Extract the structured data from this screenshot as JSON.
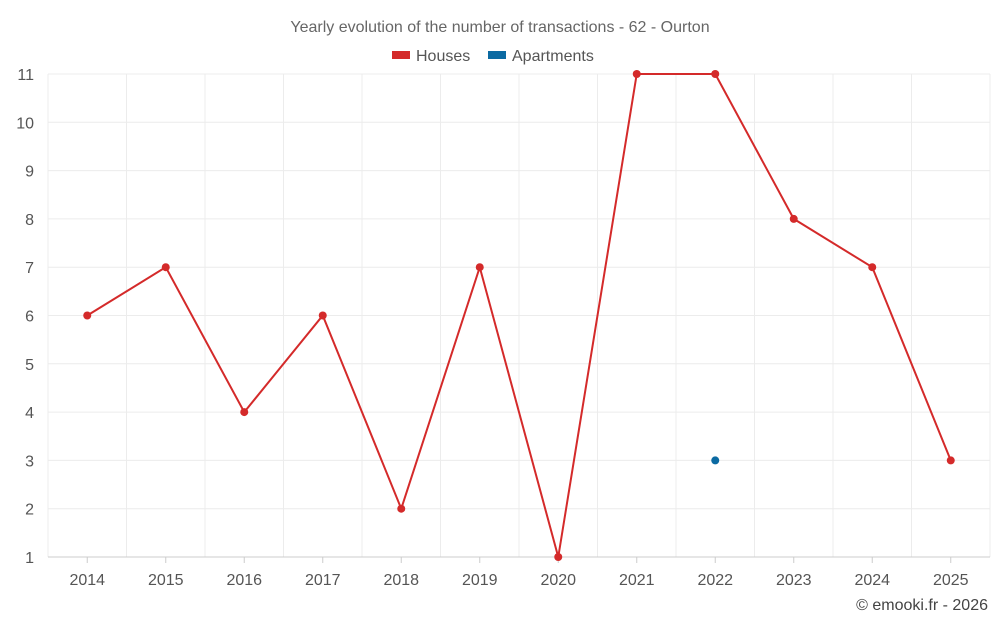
{
  "chart_data": {
    "type": "line",
    "title": "Yearly evolution of the number of transactions - 62 - Ourton",
    "categories": [
      "2014",
      "2015",
      "2016",
      "2017",
      "2018",
      "2019",
      "2020",
      "2021",
      "2022",
      "2023",
      "2024",
      "2025"
    ],
    "series": [
      {
        "name": "Houses",
        "color": "#d42a2a",
        "values": [
          6,
          7,
          4,
          6,
          2,
          7,
          1,
          11,
          11,
          8,
          7,
          3
        ]
      },
      {
        "name": "Apartments",
        "color": "#0b6aa2",
        "values": [
          null,
          null,
          null,
          null,
          null,
          null,
          null,
          null,
          3,
          null,
          null,
          null
        ]
      }
    ],
    "y_ticks": [
      1,
      2,
      3,
      4,
      5,
      6,
      7,
      8,
      9,
      10,
      11
    ],
    "ylim": [
      1,
      11
    ],
    "grid": true,
    "legend_position": "top-center",
    "xlabel": "",
    "ylabel": ""
  },
  "credit": "© emooki.fr - 2026"
}
